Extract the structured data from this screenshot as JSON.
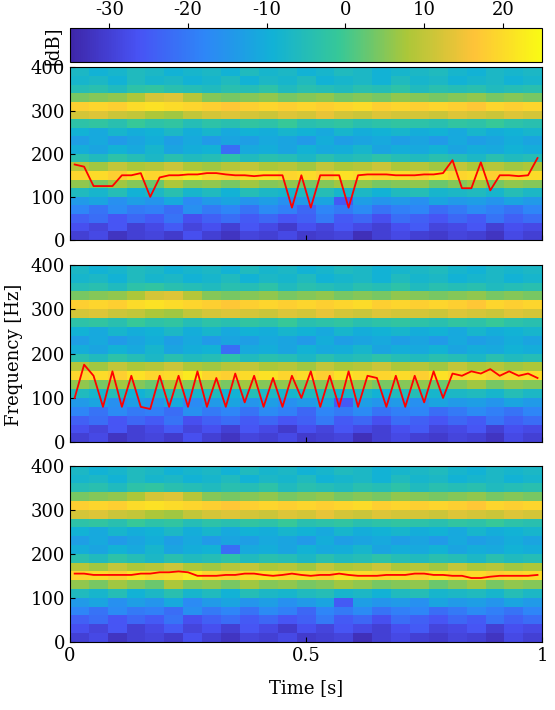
{
  "chart_data": [
    {
      "type": "line",
      "color": "#ff0000",
      "xlim": [
        0,
        1
      ],
      "ylim": [
        0,
        400
      ],
      "xticks": [
        0,
        0.5,
        1
      ],
      "yticks": [
        0,
        100,
        200,
        300,
        400
      ],
      "tick_labels": "y",
      "x": [
        0.01,
        0.03,
        0.05,
        0.07,
        0.09,
        0.11,
        0.13,
        0.15,
        0.17,
        0.19,
        0.21,
        0.23,
        0.25,
        0.27,
        0.29,
        0.31,
        0.33,
        0.35,
        0.37,
        0.39,
        0.41,
        0.43,
        0.45,
        0.47,
        0.49,
        0.51,
        0.53,
        0.55,
        0.57,
        0.59,
        0.61,
        0.63,
        0.65,
        0.67,
        0.69,
        0.71,
        0.73,
        0.75,
        0.77,
        0.79,
        0.81,
        0.83,
        0.85,
        0.87,
        0.89,
        0.91,
        0.93,
        0.95,
        0.97,
        0.99
      ],
      "values": [
        175,
        170,
        125,
        125,
        125,
        150,
        150,
        155,
        100,
        145,
        150,
        150,
        152,
        152,
        155,
        155,
        152,
        150,
        150,
        148,
        150,
        150,
        150,
        75,
        150,
        75,
        150,
        150,
        150,
        75,
        150,
        152,
        152,
        152,
        150,
        150,
        150,
        152,
        152,
        155,
        185,
        120,
        120,
        180,
        115,
        150,
        150,
        148,
        150,
        190
      ]
    },
    {
      "type": "line",
      "color": "#ff0000",
      "xlim": [
        0,
        1
      ],
      "ylim": [
        0,
        400
      ],
      "xticks": [
        0,
        0.5,
        1
      ],
      "yticks": [
        0,
        100,
        200,
        300,
        400
      ],
      "tick_labels": "y",
      "x": [
        0.01,
        0.03,
        0.05,
        0.07,
        0.09,
        0.11,
        0.13,
        0.15,
        0.17,
        0.19,
        0.21,
        0.23,
        0.25,
        0.27,
        0.29,
        0.31,
        0.33,
        0.35,
        0.37,
        0.39,
        0.41,
        0.43,
        0.45,
        0.47,
        0.49,
        0.51,
        0.53,
        0.55,
        0.57,
        0.59,
        0.61,
        0.63,
        0.65,
        0.67,
        0.69,
        0.71,
        0.73,
        0.75,
        0.77,
        0.79,
        0.81,
        0.83,
        0.85,
        0.87,
        0.89,
        0.91,
        0.93,
        0.95,
        0.97,
        0.99
      ],
      "values": [
        100,
        175,
        150,
        80,
        160,
        80,
        150,
        80,
        75,
        150,
        80,
        150,
        80,
        160,
        80,
        145,
        80,
        155,
        90,
        150,
        80,
        145,
        80,
        150,
        100,
        160,
        80,
        150,
        80,
        160,
        80,
        150,
        145,
        80,
        150,
        80,
        150,
        90,
        160,
        100,
        155,
        150,
        160,
        155,
        165,
        150,
        160,
        150,
        155,
        145
      ]
    },
    {
      "type": "line",
      "color": "#ff0000",
      "xlim": [
        0,
        1
      ],
      "ylim": [
        0,
        400
      ],
      "xticks": [
        0,
        0.5,
        1
      ],
      "yticks": [
        0,
        100,
        200,
        300,
        400
      ],
      "x": [
        0.01,
        0.03,
        0.05,
        0.07,
        0.09,
        0.11,
        0.13,
        0.15,
        0.17,
        0.19,
        0.21,
        0.23,
        0.25,
        0.27,
        0.29,
        0.31,
        0.33,
        0.35,
        0.37,
        0.39,
        0.41,
        0.43,
        0.45,
        0.47,
        0.49,
        0.51,
        0.53,
        0.55,
        0.57,
        0.59,
        0.61,
        0.63,
        0.65,
        0.67,
        0.69,
        0.71,
        0.73,
        0.75,
        0.77,
        0.79,
        0.81,
        0.83,
        0.85,
        0.87,
        0.89,
        0.91,
        0.93,
        0.95,
        0.97,
        0.99
      ],
      "values": [
        155,
        155,
        152,
        152,
        152,
        152,
        152,
        155,
        155,
        158,
        158,
        160,
        158,
        150,
        150,
        150,
        152,
        152,
        155,
        155,
        152,
        150,
        152,
        155,
        152,
        150,
        152,
        152,
        155,
        152,
        150,
        150,
        150,
        152,
        152,
        152,
        155,
        155,
        152,
        152,
        150,
        150,
        145,
        145,
        148,
        150,
        150,
        150,
        150,
        152
      ]
    }
  ],
  "xlabel": "Time [s]",
  "ylabel": "Frequency [Hz]",
  "spectrogram": {
    "x_edges": [
      0,
      0.04,
      0.08,
      0.12,
      0.16,
      0.2,
      0.24,
      0.28,
      0.32,
      0.36,
      0.4,
      0.44,
      0.48,
      0.52,
      0.56,
      0.6,
      0.64,
      0.68,
      0.72,
      0.76,
      0.8,
      0.84,
      0.88,
      0.92,
      0.96,
      1.0
    ],
    "y_edges": [
      0,
      20,
      40,
      60,
      80,
      100,
      120,
      140,
      160,
      180,
      200,
      220,
      240,
      260,
      280,
      300,
      320,
      340,
      360,
      380,
      400
    ],
    "colorbar": {
      "label": "[dB]",
      "lim": [
        -35,
        25
      ],
      "ticks": [
        -30,
        -20,
        -10,
        0,
        10,
        20
      ]
    },
    "cells": [
      [
        -30,
        -28,
        -32,
        -30,
        -29,
        -31,
        -27,
        -30,
        -32,
        -29,
        -30,
        -28,
        -31,
        -30,
        -29,
        -33,
        -30,
        -28,
        -30,
        -31,
        -29,
        -30,
        -32,
        -28,
        -30
      ],
      [
        -27,
        -29,
        -26,
        -30,
        -28,
        -25,
        -29,
        -27,
        -30,
        -26,
        -28,
        -31,
        -27,
        -29,
        -26,
        -28,
        -30,
        -27,
        -25,
        -29,
        -28,
        -26,
        -30,
        -27,
        -28
      ],
      [
        -24,
        -22,
        -26,
        -23,
        -25,
        -21,
        -27,
        -24,
        -22,
        -25,
        -23,
        -26,
        -24,
        -20,
        -25,
        -23,
        -27,
        -22,
        -24,
        -26,
        -23,
        -25,
        -21,
        -24,
        -22
      ],
      [
        -18,
        -21,
        -17,
        -20,
        -19,
        -22,
        -16,
        -20,
        -18,
        -21,
        -17,
        -19,
        -23,
        -18,
        -20,
        -17,
        -21,
        -19,
        -18,
        -22,
        -20,
        -17,
        -19,
        -21,
        -18
      ],
      [
        -14,
        -12,
        -16,
        -13,
        -15,
        -11,
        -17,
        -14,
        -12,
        -15,
        -13,
        -16,
        -14,
        -12,
        -25,
        -13,
        -15,
        -14,
        -16,
        -12,
        -14,
        -13,
        -15,
        -12,
        -14
      ],
      [
        -6,
        -8,
        -5,
        -9,
        -7,
        -4,
        -8,
        -6,
        -9,
        -5,
        -7,
        -8,
        -6,
        -5,
        -8,
        -7,
        -9,
        -6,
        -5,
        -8,
        -7,
        -6,
        -8,
        -5,
        -7
      ],
      [
        6,
        4,
        7,
        5,
        3,
        8,
        5,
        6,
        4,
        7,
        5,
        6,
        4,
        5,
        7,
        6,
        4,
        5,
        6,
        3,
        5,
        7,
        4,
        6,
        5
      ],
      [
        19,
        20,
        18,
        21,
        19,
        20,
        22,
        19,
        18,
        20,
        21,
        19,
        20,
        18,
        21,
        20,
        19,
        20,
        18,
        21,
        19,
        20,
        18,
        19,
        20
      ],
      [
        9,
        7,
        10,
        8,
        9,
        11,
        8,
        7,
        9,
        10,
        8,
        9,
        7,
        10,
        8,
        9,
        11,
        8,
        9,
        7,
        10,
        8,
        9,
        7,
        8
      ],
      [
        -4,
        -6,
        -3,
        -5,
        -7,
        -4,
        -6,
        -5,
        -3,
        -6,
        -4,
        -5,
        -7,
        -4,
        -6,
        -5,
        -3,
        -5,
        -6,
        -4,
        -5,
        -7,
        -4,
        -6,
        -5
      ],
      [
        -10,
        -12,
        -9,
        -11,
        -8,
        -12,
        -10,
        -9,
        -22,
        -11,
        -10,
        -12,
        -9,
        -11,
        -10,
        -8,
        -12,
        -10,
        -11,
        -9,
        -12,
        -10,
        -11,
        -9,
        -10
      ],
      [
        -13,
        -11,
        -14,
        -12,
        -10,
        -13,
        -11,
        -14,
        -12,
        -13,
        -11,
        -12,
        -14,
        -10,
        -13,
        -12,
        -11,
        -13,
        -12,
        -14,
        -11,
        -13,
        -12,
        -10,
        -12
      ],
      [
        -9,
        -11,
        -8,
        -10,
        -9,
        -7,
        -10,
        -8,
        -11,
        -9,
        -10,
        -8,
        -9,
        -11,
        -8,
        -10,
        -9,
        -8,
        -10,
        -9,
        -11,
        -8,
        -10,
        -9,
        -8
      ],
      [
        -3,
        -2,
        -4,
        -1,
        -3,
        -2,
        -5,
        -3,
        -4,
        -2,
        -3,
        -1,
        -4,
        -3,
        -2,
        -4,
        -3,
        -2,
        -3,
        -4,
        -2,
        -3,
        -1,
        -3,
        -4
      ],
      [
        12,
        13,
        11,
        10,
        8,
        7,
        10,
        12,
        13,
        12,
        11,
        13,
        12,
        14,
        12,
        11,
        13,
        12,
        12,
        11,
        13,
        12,
        11,
        13,
        12
      ],
      [
        18,
        19,
        18,
        20,
        21,
        20,
        19,
        18,
        17,
        18,
        19,
        18,
        19,
        18,
        19,
        20,
        18,
        19,
        18,
        19,
        18,
        17,
        19,
        18,
        19
      ],
      [
        4,
        5,
        6,
        8,
        12,
        13,
        9,
        5,
        4,
        5,
        6,
        4,
        5,
        6,
        4,
        5,
        4,
        6,
        5,
        4,
        5,
        6,
        4,
        5,
        4
      ],
      [
        -5,
        -4,
        -6,
        -3,
        -2,
        -4,
        -5,
        -6,
        -4,
        -5,
        -3,
        -6,
        -4,
        -5,
        -6,
        -4,
        -5,
        -3,
        -6,
        -4,
        -5,
        -4,
        -6,
        -5,
        -4
      ],
      [
        -8,
        -7,
        -9,
        -6,
        -8,
        -7,
        -9,
        -8,
        -6,
        -9,
        -7,
        -8,
        -6,
        -9,
        -8,
        -7,
        -9,
        -6,
        -8,
        -7,
        -9,
        -8,
        -7,
        -9,
        -8
      ],
      [
        -7,
        -9,
        -8,
        -6,
        -7,
        -9,
        -8,
        -7,
        -9,
        -6,
        -8,
        -7,
        -9,
        -8,
        -6,
        -7,
        -9,
        -8,
        -7,
        -6,
        -8,
        -9,
        -7,
        -8,
        -7
      ]
    ]
  }
}
